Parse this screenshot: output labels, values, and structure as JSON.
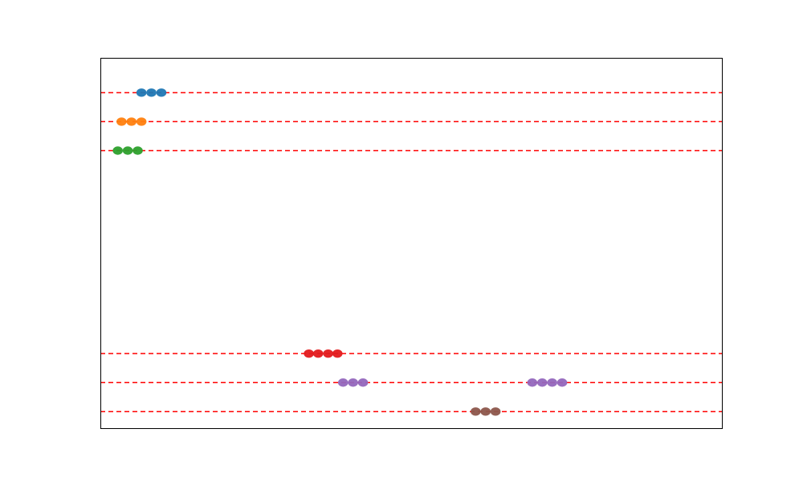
{
  "chart_data": {
    "type": "scatter",
    "title": "",
    "xlabel": "",
    "ylabel": "",
    "xlim": [
      0,
      100
    ],
    "ylim": [
      0.4,
      13.2
    ],
    "grid": false,
    "legend": "none",
    "show_ticks": false,
    "reference_lines": {
      "style": "dashed",
      "color": "#ff0000",
      "y": [
        1,
        2,
        3,
        10,
        11,
        12
      ]
    },
    "series": [
      {
        "color": "#1f77b4",
        "points": [
          {
            "x": 6.6,
            "y": 12
          },
          {
            "x": 8.2,
            "y": 12
          },
          {
            "x": 9.8,
            "y": 12
          }
        ]
      },
      {
        "color": "#ff7f0e",
        "points": [
          {
            "x": 3.4,
            "y": 11
          },
          {
            "x": 5.0,
            "y": 11
          },
          {
            "x": 6.6,
            "y": 11
          }
        ]
      },
      {
        "color": "#2ca02c",
        "points": [
          {
            "x": 2.8,
            "y": 10
          },
          {
            "x": 4.4,
            "y": 10
          },
          {
            "x": 6.0,
            "y": 10
          }
        ]
      },
      {
        "color": "#e31a1c",
        "points": [
          {
            "x": 33.5,
            "y": 3
          },
          {
            "x": 35.0,
            "y": 3
          },
          {
            "x": 36.6,
            "y": 3
          },
          {
            "x": 38.1,
            "y": 3
          }
        ]
      },
      {
        "color": "#9467bd",
        "points": [
          {
            "x": 39.0,
            "y": 2
          },
          {
            "x": 40.6,
            "y": 2
          },
          {
            "x": 42.2,
            "y": 2
          },
          {
            "x": 69.4,
            "y": 2
          },
          {
            "x": 71.0,
            "y": 2
          },
          {
            "x": 72.6,
            "y": 2
          },
          {
            "x": 74.2,
            "y": 2
          }
        ]
      },
      {
        "color": "#8c564b",
        "points": [
          {
            "x": 60.3,
            "y": 1
          },
          {
            "x": 61.9,
            "y": 1
          },
          {
            "x": 63.5,
            "y": 1
          }
        ]
      }
    ]
  }
}
